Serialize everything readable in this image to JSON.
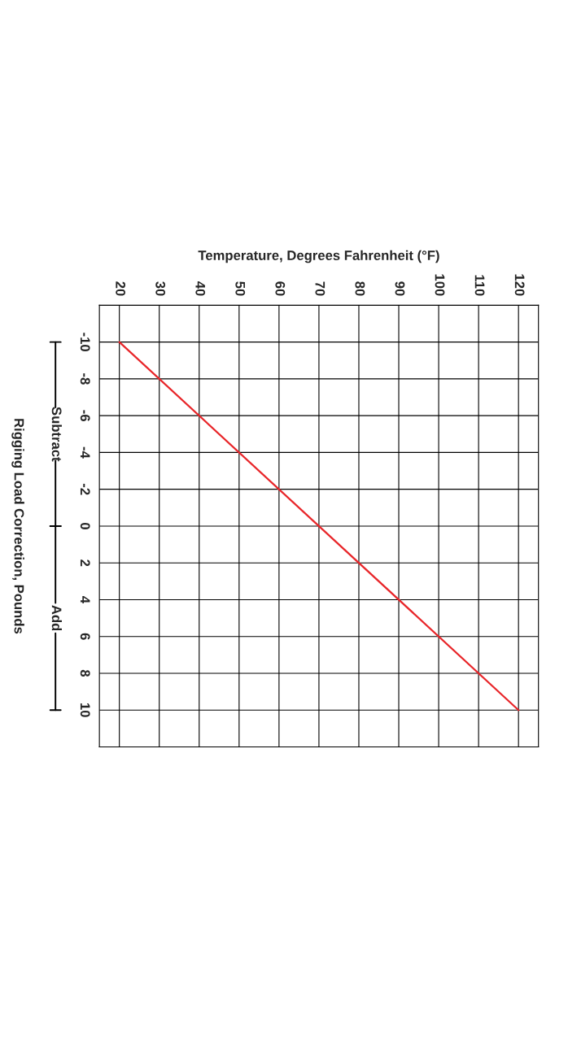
{
  "chart_data": {
    "type": "line",
    "xlabel": "Temperature, Degrees Fahrenheit (°F)",
    "ylabel": "Rigging Load Correction, Pounds",
    "series": [
      {
        "color": "#e8262a",
        "x": [
          20,
          120
        ],
        "values": [
          -10,
          10
        ]
      }
    ],
    "xlim": [
      15,
      125
    ],
    "xticks": [
      20,
      30,
      40,
      50,
      60,
      70,
      80,
      90,
      100,
      110,
      120
    ],
    "ylim": [
      12,
      -12
    ],
    "yticks": [
      -10,
      -8,
      -6,
      -4,
      -2,
      0,
      2,
      4,
      6,
      8,
      10
    ],
    "grid": true,
    "marker": "none",
    "line_style": "solid",
    "annotations": [
      "Subtract",
      "Add"
    ]
  }
}
